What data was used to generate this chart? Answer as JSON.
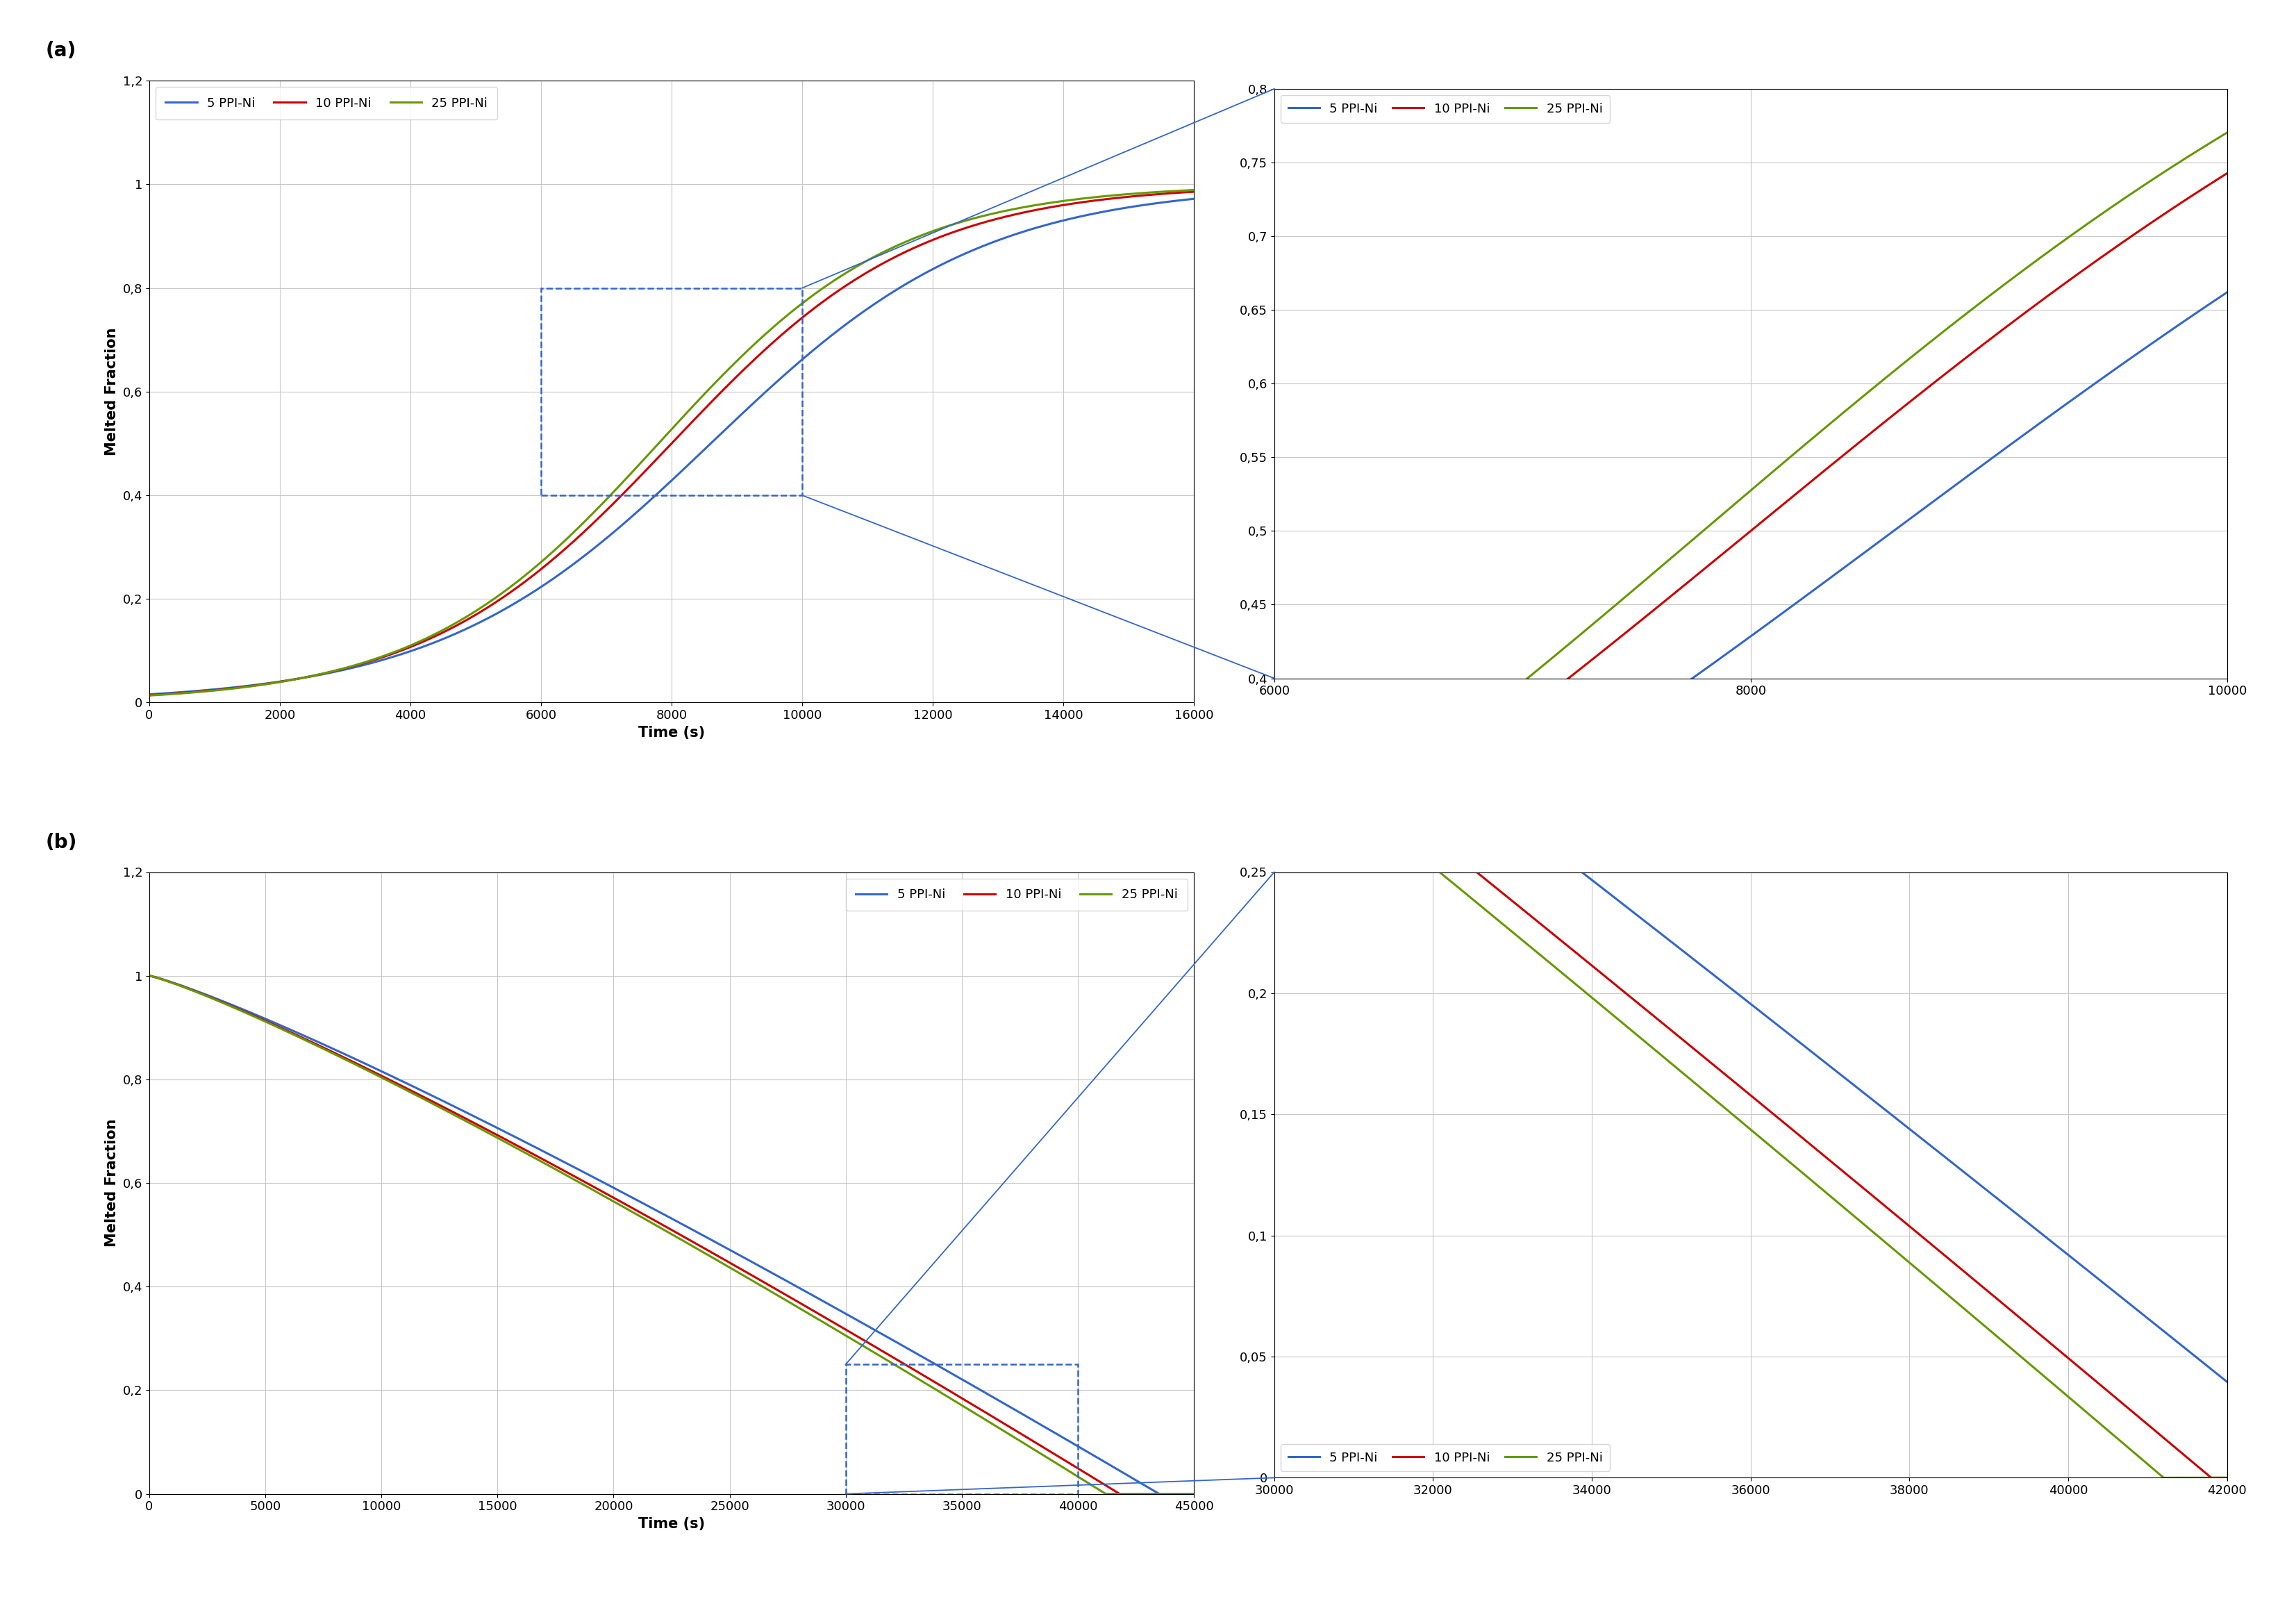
{
  "panel_a": {
    "title": "(a)",
    "xlabel": "Time (s)",
    "ylabel": "Melted Fraction",
    "xlim": [
      0,
      16000
    ],
    "ylim": [
      0,
      1.2
    ],
    "xticks": [
      0,
      2000,
      4000,
      6000,
      8000,
      10000,
      12000,
      14000,
      16000
    ],
    "yticks": [
      0,
      0.2,
      0.4,
      0.6,
      0.8,
      1.0,
      1.2
    ],
    "ytick_labels": [
      "0",
      "0,2",
      "0,4",
      "0,6",
      "0,8",
      "1",
      "1,2"
    ],
    "legend_labels": [
      "5 PPI-Ni",
      "10 PPI-Ni",
      "25 PPI-Ni"
    ],
    "colors": [
      "#3366CC",
      "#CC0000",
      "#669900"
    ],
    "inset": {
      "xlim": [
        6000,
        10000
      ],
      "ylim": [
        0.4,
        0.8
      ],
      "xticks": [
        6000,
        8000,
        10000
      ],
      "yticks": [
        0.4,
        0.45,
        0.5,
        0.55,
        0.6,
        0.65,
        0.7,
        0.75,
        0.8
      ],
      "ytick_labels": [
        "0,4",
        "0,45",
        "0,5",
        "0,55",
        "0,6",
        "0,65",
        "0,7",
        "0,75",
        "0,8"
      ]
    }
  },
  "panel_b": {
    "title": "(b)",
    "xlabel": "Time (s)",
    "ylabel": "Melted Fraction",
    "xlim": [
      0,
      45000
    ],
    "ylim": [
      0,
      1.2
    ],
    "xticks": [
      0,
      5000,
      10000,
      15000,
      20000,
      25000,
      30000,
      35000,
      40000,
      45000
    ],
    "yticks": [
      0,
      0.2,
      0.4,
      0.6,
      0.8,
      1.0,
      1.2
    ],
    "ytick_labels": [
      "0",
      "0,2",
      "0,4",
      "0,6",
      "0,8",
      "1",
      "1,2"
    ],
    "legend_labels": [
      "5 PPI-Ni",
      "10 PPI-Ni",
      "25 PPI-Ni"
    ],
    "colors": [
      "#3366CC",
      "#CC0000",
      "#669900"
    ],
    "inset": {
      "xlim": [
        30000,
        42000
      ],
      "ylim": [
        0,
        0.25
      ],
      "xticks": [
        30000,
        32000,
        34000,
        36000,
        38000,
        40000,
        42000
      ],
      "yticks": [
        0,
        0.05,
        0.1,
        0.15,
        0.2,
        0.25
      ],
      "ytick_labels": [
        "0",
        "0,05",
        "0,1",
        "0,15",
        "0,2",
        "0,25"
      ]
    }
  },
  "line_width": 2.2,
  "background_color": "#ffffff",
  "grid_color": "#c8c8c8"
}
